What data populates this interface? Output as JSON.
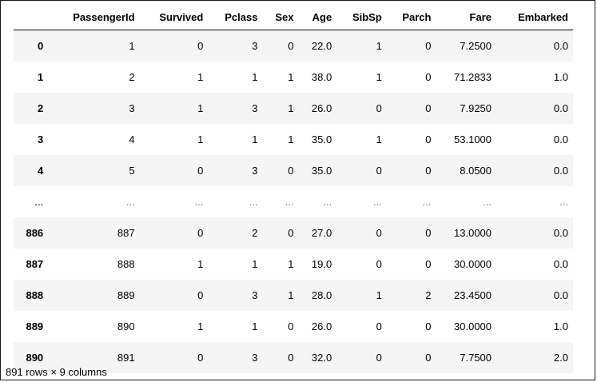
{
  "table": {
    "columns": [
      "",
      "PassengerId",
      "Survived",
      "Pclass",
      "Sex",
      "Age",
      "SibSp",
      "Parch",
      "Fare",
      "Embarked"
    ],
    "rows": [
      [
        "0",
        "1",
        "0",
        "3",
        "0",
        "22.0",
        "1",
        "0",
        "7.2500",
        "0.0"
      ],
      [
        "1",
        "2",
        "1",
        "1",
        "1",
        "38.0",
        "1",
        "0",
        "71.2833",
        "1.0"
      ],
      [
        "2",
        "3",
        "1",
        "3",
        "1",
        "26.0",
        "0",
        "0",
        "7.9250",
        "0.0"
      ],
      [
        "3",
        "4",
        "1",
        "1",
        "1",
        "35.0",
        "1",
        "0",
        "53.1000",
        "0.0"
      ],
      [
        "4",
        "5",
        "0",
        "3",
        "0",
        "35.0",
        "0",
        "0",
        "8.0500",
        "0.0"
      ],
      [
        "...",
        "...",
        "...",
        "...",
        "...",
        "...",
        "...",
        "...",
        "...",
        "..."
      ],
      [
        "886",
        "887",
        "0",
        "2",
        "0",
        "27.0",
        "0",
        "0",
        "13.0000",
        "0.0"
      ],
      [
        "887",
        "888",
        "1",
        "1",
        "1",
        "19.0",
        "0",
        "0",
        "30.0000",
        "0.0"
      ],
      [
        "888",
        "889",
        "0",
        "3",
        "1",
        "28.0",
        "1",
        "2",
        "23.4500",
        "0.0"
      ],
      [
        "889",
        "890",
        "1",
        "1",
        "0",
        "26.0",
        "0",
        "0",
        "30.0000",
        "1.0"
      ],
      [
        "890",
        "891",
        "0",
        "3",
        "0",
        "32.0",
        "0",
        "0",
        "7.7500",
        "2.0"
      ]
    ]
  },
  "footer": "891 rows × 9 columns"
}
